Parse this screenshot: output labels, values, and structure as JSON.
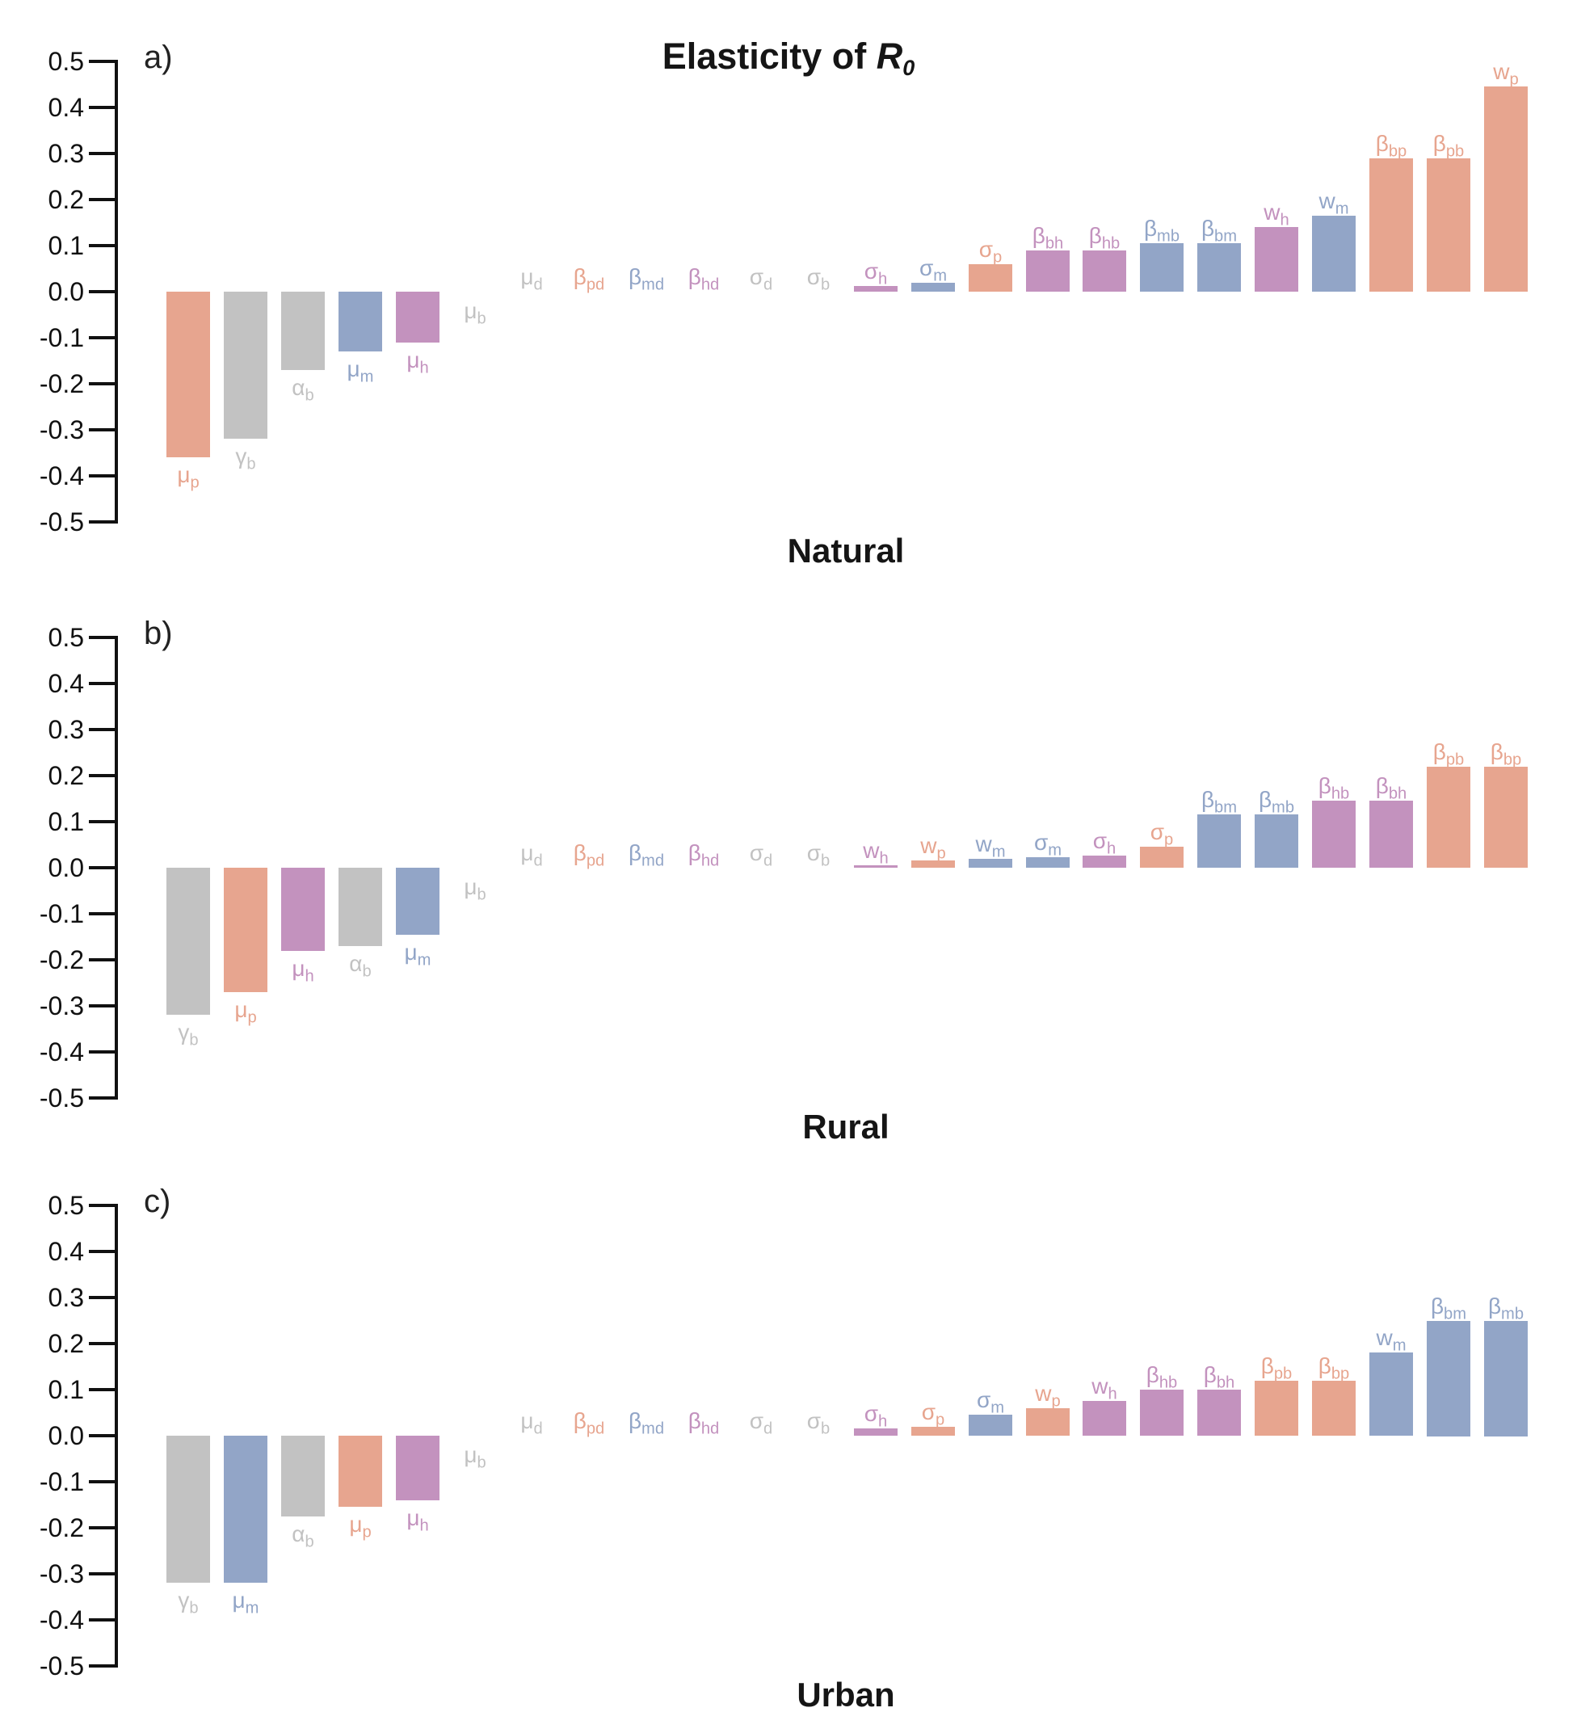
{
  "figure_title": {
    "prefix": "Elasticity of ",
    "symbol": "R",
    "subscript": "0"
  },
  "palette": {
    "pig": "#E7A58F",
    "mosquito": "#92A5C7",
    "human": "#C392BE",
    "neutral": "#C2C2C2",
    "axis": "#111111"
  },
  "y_axis": {
    "min": -0.5,
    "max": 0.5,
    "step": 0.1,
    "tick_labels": [
      "0.5",
      "0.4",
      "0.3",
      "0.2",
      "0.1",
      "0.0",
      "-0.1",
      "-0.2",
      "-0.3",
      "-0.4",
      "-0.5"
    ]
  },
  "chart_data": [
    {
      "type": "bar",
      "panel_label": "a)",
      "title": "Natural",
      "ylim": [
        -0.5,
        0.5
      ],
      "grid": false,
      "bars": [
        {
          "name": "mu_p",
          "glyph": "μ",
          "sub": "p",
          "value": -0.36,
          "color": "pig"
        },
        {
          "name": "gamma_b",
          "glyph": "γ",
          "sub": "b",
          "value": -0.32,
          "color": "neutral"
        },
        {
          "name": "alpha_b",
          "glyph": "α",
          "sub": "b",
          "value": -0.17,
          "color": "neutral"
        },
        {
          "name": "mu_m",
          "glyph": "μ",
          "sub": "m",
          "value": -0.13,
          "color": "mosquito"
        },
        {
          "name": "mu_h",
          "glyph": "μ",
          "sub": "h",
          "value": -0.11,
          "color": "human"
        },
        {
          "name": "mu_b",
          "glyph": "μ",
          "sub": "b",
          "value": -0.003,
          "color": "neutral"
        },
        {
          "name": "mu_d",
          "glyph": "μ",
          "sub": "d",
          "value": 0.001,
          "color": "neutral"
        },
        {
          "name": "beta_pd",
          "glyph": "β",
          "sub": "pd",
          "value": 0.001,
          "color": "pig"
        },
        {
          "name": "beta_md",
          "glyph": "β",
          "sub": "md",
          "value": 0.001,
          "color": "mosquito"
        },
        {
          "name": "beta_hd",
          "glyph": "β",
          "sub": "hd",
          "value": 0.001,
          "color": "human"
        },
        {
          "name": "sigma_d",
          "glyph": "σ",
          "sub": "d",
          "value": 0.001,
          "color": "neutral"
        },
        {
          "name": "sigma_b",
          "glyph": "σ",
          "sub": "b",
          "value": 0.001,
          "color": "neutral"
        },
        {
          "name": "sigma_h",
          "glyph": "σ",
          "sub": "h",
          "value": 0.012,
          "color": "human"
        },
        {
          "name": "sigma_m",
          "glyph": "σ",
          "sub": "m",
          "value": 0.02,
          "color": "mosquito"
        },
        {
          "name": "sigma_p",
          "glyph": "σ",
          "sub": "p",
          "value": 0.06,
          "color": "pig"
        },
        {
          "name": "beta_bh",
          "glyph": "β",
          "sub": "bh",
          "value": 0.09,
          "color": "human"
        },
        {
          "name": "beta_hb",
          "glyph": "β",
          "sub": "hb",
          "value": 0.09,
          "color": "human"
        },
        {
          "name": "beta_mb",
          "glyph": "β",
          "sub": "mb",
          "value": 0.105,
          "color": "mosquito"
        },
        {
          "name": "beta_bm",
          "glyph": "β",
          "sub": "bm",
          "value": 0.105,
          "color": "mosquito"
        },
        {
          "name": "w_h",
          "glyph": "w",
          "sub": "h",
          "value": 0.14,
          "color": "human"
        },
        {
          "name": "w_m",
          "glyph": "w",
          "sub": "m",
          "value": 0.165,
          "color": "mosquito"
        },
        {
          "name": "beta_bp",
          "glyph": "β",
          "sub": "bp",
          "value": 0.29,
          "color": "pig"
        },
        {
          "name": "beta_pb",
          "glyph": "β",
          "sub": "pb",
          "value": 0.29,
          "color": "pig"
        },
        {
          "name": "w_p",
          "glyph": "w",
          "sub": "p",
          "value": 0.445,
          "color": "pig"
        }
      ]
    },
    {
      "type": "bar",
      "panel_label": "b)",
      "title": "Rural",
      "ylim": [
        -0.5,
        0.5
      ],
      "grid": false,
      "bars": [
        {
          "name": "gamma_b",
          "glyph": "γ",
          "sub": "b",
          "value": -0.32,
          "color": "neutral"
        },
        {
          "name": "mu_p",
          "glyph": "μ",
          "sub": "p",
          "value": -0.27,
          "color": "pig"
        },
        {
          "name": "mu_h",
          "glyph": "μ",
          "sub": "h",
          "value": -0.18,
          "color": "human"
        },
        {
          "name": "alpha_b",
          "glyph": "α",
          "sub": "b",
          "value": -0.17,
          "color": "neutral"
        },
        {
          "name": "mu_m",
          "glyph": "μ",
          "sub": "m",
          "value": -0.145,
          "color": "mosquito"
        },
        {
          "name": "mu_b",
          "glyph": "μ",
          "sub": "b",
          "value": -0.003,
          "color": "neutral"
        },
        {
          "name": "mu_d",
          "glyph": "μ",
          "sub": "d",
          "value": 0.001,
          "color": "neutral"
        },
        {
          "name": "beta_pd",
          "glyph": "β",
          "sub": "pd",
          "value": 0.001,
          "color": "pig"
        },
        {
          "name": "beta_md",
          "glyph": "β",
          "sub": "md",
          "value": 0.001,
          "color": "mosquito"
        },
        {
          "name": "beta_hd",
          "glyph": "β",
          "sub": "hd",
          "value": 0.001,
          "color": "human"
        },
        {
          "name": "sigma_d",
          "glyph": "σ",
          "sub": "d",
          "value": 0.001,
          "color": "neutral"
        },
        {
          "name": "sigma_b",
          "glyph": "σ",
          "sub": "b",
          "value": 0.001,
          "color": "neutral"
        },
        {
          "name": "w_h",
          "glyph": "w",
          "sub": "h",
          "value": 0.005,
          "color": "human"
        },
        {
          "name": "w_p",
          "glyph": "w",
          "sub": "p",
          "value": 0.015,
          "color": "pig"
        },
        {
          "name": "w_m",
          "glyph": "w",
          "sub": "m",
          "value": 0.02,
          "color": "mosquito"
        },
        {
          "name": "sigma_m",
          "glyph": "σ",
          "sub": "m",
          "value": 0.022,
          "color": "mosquito"
        },
        {
          "name": "sigma_h",
          "glyph": "σ",
          "sub": "h",
          "value": 0.027,
          "color": "human"
        },
        {
          "name": "sigma_p",
          "glyph": "σ",
          "sub": "p",
          "value": 0.045,
          "color": "pig"
        },
        {
          "name": "beta_bm",
          "glyph": "β",
          "sub": "bm",
          "value": 0.115,
          "color": "mosquito"
        },
        {
          "name": "beta_mb",
          "glyph": "β",
          "sub": "mb",
          "value": 0.115,
          "color": "mosquito"
        },
        {
          "name": "beta_hb",
          "glyph": "β",
          "sub": "hb",
          "value": 0.145,
          "color": "human"
        },
        {
          "name": "beta_bh",
          "glyph": "β",
          "sub": "bh",
          "value": 0.145,
          "color": "human"
        },
        {
          "name": "beta_pb",
          "glyph": "β",
          "sub": "pb",
          "value": 0.22,
          "color": "pig"
        },
        {
          "name": "beta_bp",
          "glyph": "β",
          "sub": "bp",
          "value": 0.22,
          "color": "pig"
        }
      ]
    },
    {
      "type": "bar",
      "panel_label": "c)",
      "title": "Urban",
      "ylim": [
        -0.5,
        0.5
      ],
      "grid": false,
      "bars": [
        {
          "name": "gamma_b",
          "glyph": "γ",
          "sub": "b",
          "value": -0.32,
          "color": "neutral"
        },
        {
          "name": "mu_m",
          "glyph": "μ",
          "sub": "m",
          "value": -0.32,
          "color": "mosquito"
        },
        {
          "name": "alpha_b",
          "glyph": "α",
          "sub": "b",
          "value": -0.175,
          "color": "neutral"
        },
        {
          "name": "mu_p",
          "glyph": "μ",
          "sub": "p",
          "value": -0.155,
          "color": "pig"
        },
        {
          "name": "mu_h",
          "glyph": "μ",
          "sub": "h",
          "value": -0.14,
          "color": "human"
        },
        {
          "name": "mu_b",
          "glyph": "μ",
          "sub": "b",
          "value": -0.003,
          "color": "neutral"
        },
        {
          "name": "mu_d",
          "glyph": "μ",
          "sub": "d",
          "value": 0.001,
          "color": "neutral"
        },
        {
          "name": "beta_pd",
          "glyph": "β",
          "sub": "pd",
          "value": 0.001,
          "color": "pig"
        },
        {
          "name": "beta_md",
          "glyph": "β",
          "sub": "md",
          "value": 0.001,
          "color": "mosquito"
        },
        {
          "name": "beta_hd",
          "glyph": "β",
          "sub": "hd",
          "value": 0.001,
          "color": "human"
        },
        {
          "name": "sigma_d",
          "glyph": "σ",
          "sub": "d",
          "value": 0.001,
          "color": "neutral"
        },
        {
          "name": "sigma_b",
          "glyph": "σ",
          "sub": "b",
          "value": 0.001,
          "color": "neutral"
        },
        {
          "name": "sigma_h",
          "glyph": "σ",
          "sub": "h",
          "value": 0.015,
          "color": "human"
        },
        {
          "name": "sigma_p",
          "glyph": "σ",
          "sub": "p",
          "value": 0.02,
          "color": "pig"
        },
        {
          "name": "sigma_m",
          "glyph": "σ",
          "sub": "m",
          "value": 0.045,
          "color": "mosquito"
        },
        {
          "name": "w_p",
          "glyph": "w",
          "sub": "p",
          "value": 0.06,
          "color": "pig"
        },
        {
          "name": "w_h",
          "glyph": "w",
          "sub": "h",
          "value": 0.075,
          "color": "human"
        },
        {
          "name": "beta_hb",
          "glyph": "β",
          "sub": "hb",
          "value": 0.1,
          "color": "human"
        },
        {
          "name": "beta_bh",
          "glyph": "β",
          "sub": "bh",
          "value": 0.1,
          "color": "human"
        },
        {
          "name": "beta_pb",
          "glyph": "β",
          "sub": "pb",
          "value": 0.12,
          "color": "pig"
        },
        {
          "name": "beta_bp",
          "glyph": "β",
          "sub": "bp",
          "value": 0.12,
          "color": "pig"
        },
        {
          "name": "w_m",
          "glyph": "w",
          "sub": "m",
          "value": 0.18,
          "color": "mosquito"
        },
        {
          "name": "beta_bm",
          "glyph": "β",
          "sub": "bm",
          "value": 0.25,
          "color": "mosquito"
        },
        {
          "name": "beta_mb",
          "glyph": "β",
          "sub": "mb",
          "value": 0.25,
          "color": "mosquito"
        }
      ]
    }
  ]
}
